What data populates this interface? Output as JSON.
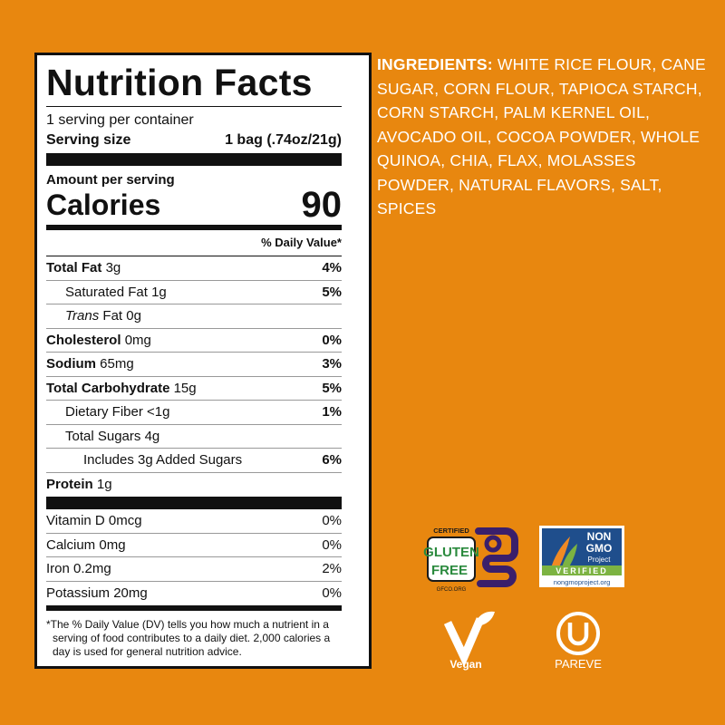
{
  "nutrition_facts": {
    "title": "Nutrition Facts",
    "servings": "1 serving per container",
    "serving_size_label": "Serving size",
    "serving_size": "1 bag (.74oz/21g)",
    "amount_per_serving": "Amount per serving",
    "calories_label": "Calories",
    "calories": "90",
    "daily_value_header": "% Daily Value*",
    "rows": [
      {
        "label": "Total Fat",
        "amount": "3g",
        "dv": "4%"
      },
      {
        "label": "Saturated Fat",
        "amount": "1g",
        "dv": "5%"
      },
      {
        "italic": "Trans",
        "label": "Fat",
        "amount": "0g"
      },
      {
        "label": "Cholesterol",
        "amount": "0mg",
        "dv": "0%"
      },
      {
        "label": "Sodium",
        "amount": "65mg",
        "dv": "3%"
      },
      {
        "label": "Total Carbohydrate",
        "amount": "15g",
        "dv": "5%"
      },
      {
        "label": "Dietary Fiber",
        "amount": "<1g",
        "dv": "1%"
      },
      {
        "label": "Total Sugars",
        "amount": "4g"
      },
      {
        "label": "Includes 3g Added Sugars",
        "dv": "6%"
      },
      {
        "label": "Protein",
        "amount": "1g"
      }
    ],
    "vitamins": [
      {
        "label": "Vitamin D",
        "amount": "0mcg",
        "dv": "0%"
      },
      {
        "label": "Calcium",
        "amount": "0mg",
        "dv": "0%"
      },
      {
        "label": "Iron",
        "amount": "0.2mg",
        "dv": "2%"
      },
      {
        "label": "Potassium",
        "amount": "20mg",
        "dv": "0%"
      }
    ],
    "footnote": "*The % Daily Value (DV) tells you how much a nutrient in a serving of food contributes to a daily diet. 2,000 calories a day is used for general nutrition advice."
  },
  "ingredients": {
    "heading": "INGREDIENTS:",
    "text": "WHITE RICE FLOUR, CANE SUGAR, CORN FLOUR, TAPIOCA STARCH, CORN STARCH, PALM KERNEL OIL, AVOCADO OIL, COCOA POWDER, WHOLE QUINOA, CHIA, FLAX, MOLASSES POWDER, NATURAL FLAVORS, SALT, SPICES"
  },
  "certifications": {
    "gluten_free": {
      "top": "CERTIFIED",
      "line1": "GLUTEN",
      "line2": "FREE",
      "url": "GFCO.ORG"
    },
    "non_gmo": {
      "line1": "NON",
      "line2": "GMO",
      "line3": "Project",
      "verified": "VERIFIED",
      "url": "nongmoproject.org"
    },
    "vegan": "Vegan",
    "pareve": "PAREVE"
  }
}
